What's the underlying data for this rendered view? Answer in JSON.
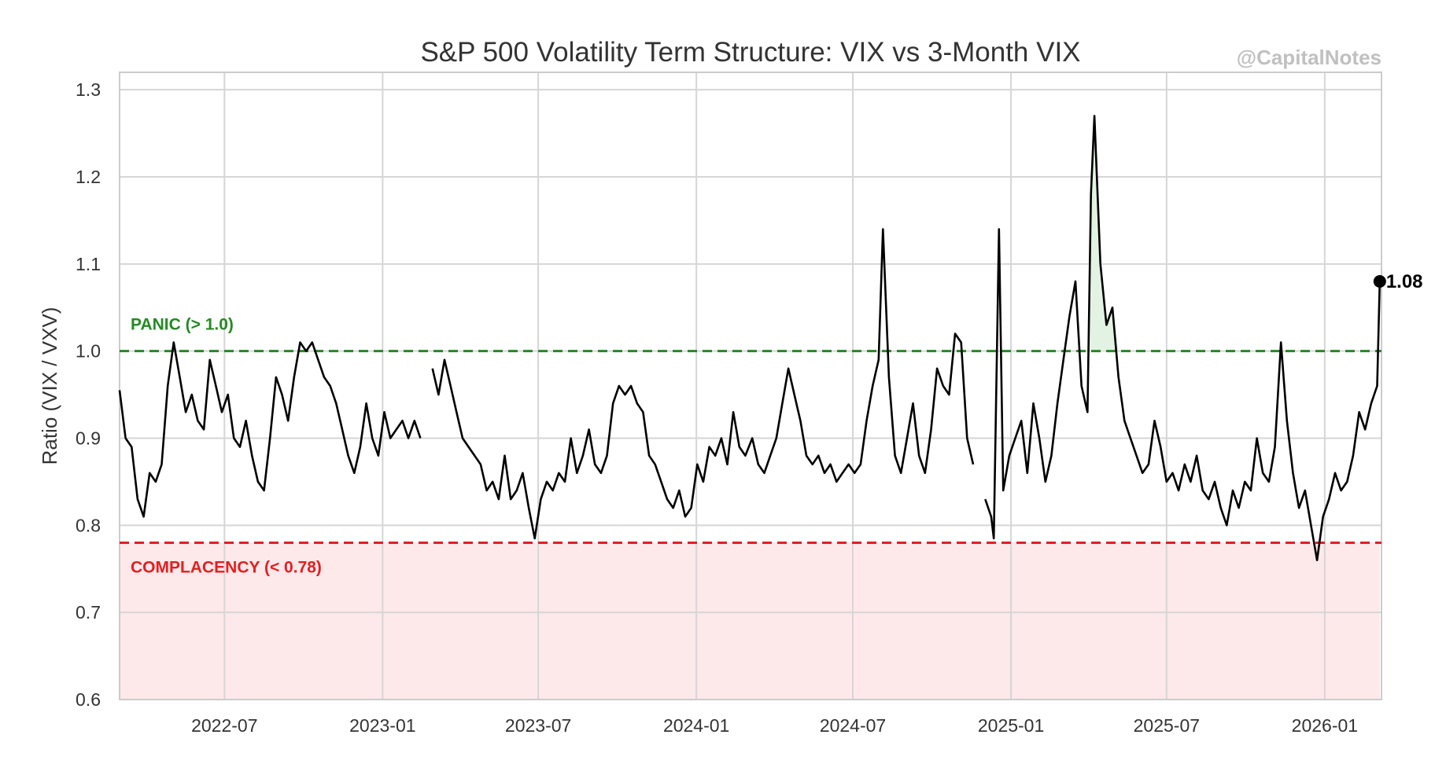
{
  "colors": {
    "series": "#000000",
    "panic": "#228b22",
    "complacency": "#e02020",
    "complacency_fill": "#fde8ea",
    "panic_fill": "#e3f3e3",
    "grid": "#d6d6d6",
    "axis": "#cccccc"
  },
  "watermark": "@CapitalNotes",
  "chart_data": {
    "type": "line",
    "title": "S&P 500 Volatility Term Structure: VIX vs 3-Month VIX",
    "xlabel": "",
    "ylabel": "Ratio (VIX / VXV)",
    "xlim": [
      "2022-03-01",
      "2026-03-08"
    ],
    "ylim": [
      0.6,
      1.32
    ],
    "yticks": [
      0.6,
      0.7,
      0.8,
      0.9,
      1.0,
      1.1,
      1.2,
      1.3
    ],
    "ytick_labels": [
      "0.6",
      "0.7",
      "0.8",
      "0.9",
      "1.0",
      "1.1",
      "1.2",
      "1.3"
    ],
    "xticks": [
      "2022-07-01",
      "2023-01-01",
      "2023-07-01",
      "2024-01-01",
      "2024-07-01",
      "2025-01-01",
      "2025-07-01",
      "2026-01-01"
    ],
    "xtick_labels": [
      "2022-07",
      "2023-01",
      "2023-07",
      "2024-01",
      "2024-07",
      "2025-01",
      "2025-07",
      "2026-01"
    ],
    "grid": true,
    "thresholds": {
      "panic": {
        "value": 1.0,
        "label": "PANIC (> 1.0)"
      },
      "complacency": {
        "value": 0.78,
        "label": "COMPLACENCY (< 0.78)"
      }
    },
    "last_point": {
      "date": "2026-03-06",
      "value": 1.08,
      "label": "1.08"
    },
    "series": [
      {
        "name": "VIX / VXV",
        "points": [
          [
            "2022-03-01",
            0.955
          ],
          [
            "2022-03-08",
            0.9
          ],
          [
            "2022-03-15",
            0.89
          ],
          [
            "2022-03-22",
            0.83
          ],
          [
            "2022-03-29",
            0.81
          ],
          [
            "2022-04-05",
            0.86
          ],
          [
            "2022-04-12",
            0.85
          ],
          [
            "2022-04-19",
            0.87
          ],
          [
            "2022-04-26",
            0.96
          ],
          [
            "2022-05-03",
            1.01
          ],
          [
            "2022-05-10",
            0.97
          ],
          [
            "2022-05-17",
            0.93
          ],
          [
            "2022-05-24",
            0.95
          ],
          [
            "2022-05-31",
            0.92
          ],
          [
            "2022-06-07",
            0.91
          ],
          [
            "2022-06-14",
            0.99
          ],
          [
            "2022-06-21",
            0.96
          ],
          [
            "2022-06-28",
            0.93
          ],
          [
            "2022-07-05",
            0.95
          ],
          [
            "2022-07-12",
            0.9
          ],
          [
            "2022-07-19",
            0.89
          ],
          [
            "2022-07-26",
            0.92
          ],
          [
            "2022-08-02",
            0.88
          ],
          [
            "2022-08-09",
            0.85
          ],
          [
            "2022-08-16",
            0.84
          ],
          [
            "2022-08-23",
            0.9
          ],
          [
            "2022-08-30",
            0.97
          ],
          [
            "2022-09-06",
            0.95
          ],
          [
            "2022-09-13",
            0.92
          ],
          [
            "2022-09-20",
            0.97
          ],
          [
            "2022-09-27",
            1.01
          ],
          [
            "2022-10-04",
            1.0
          ],
          [
            "2022-10-11",
            1.01
          ],
          [
            "2022-10-18",
            0.99
          ],
          [
            "2022-10-25",
            0.97
          ],
          [
            "2022-11-01",
            0.96
          ],
          [
            "2022-11-08",
            0.94
          ],
          [
            "2022-11-15",
            0.91
          ],
          [
            "2022-11-22",
            0.88
          ],
          [
            "2022-11-29",
            0.86
          ],
          [
            "2022-12-06",
            0.89
          ],
          [
            "2022-12-13",
            0.94
          ],
          [
            "2022-12-20",
            0.9
          ],
          [
            "2022-12-27",
            0.88
          ],
          [
            "2023-01-03",
            0.93
          ],
          [
            "2023-01-10",
            0.9
          ],
          [
            "2023-01-17",
            0.91
          ],
          [
            "2023-01-24",
            0.92
          ],
          [
            "2023-01-31",
            0.9
          ],
          [
            "2023-02-07",
            0.92
          ],
          [
            "2023-02-14",
            0.9
          ],
          [
            "2023-02-21",
            null
          ],
          [
            "2023-02-28",
            0.98
          ],
          [
            "2023-03-07",
            0.95
          ],
          [
            "2023-03-14",
            0.99
          ],
          [
            "2023-03-21",
            0.96
          ],
          [
            "2023-03-28",
            0.93
          ],
          [
            "2023-04-04",
            0.9
          ],
          [
            "2023-04-11",
            0.89
          ],
          [
            "2023-04-18",
            0.88
          ],
          [
            "2023-04-25",
            0.87
          ],
          [
            "2023-05-02",
            0.84
          ],
          [
            "2023-05-09",
            0.85
          ],
          [
            "2023-05-16",
            0.83
          ],
          [
            "2023-05-23",
            0.88
          ],
          [
            "2023-05-30",
            0.83
          ],
          [
            "2023-06-06",
            0.84
          ],
          [
            "2023-06-13",
            0.86
          ],
          [
            "2023-06-20",
            0.82
          ],
          [
            "2023-06-27",
            0.785
          ],
          [
            "2023-07-04",
            0.83
          ],
          [
            "2023-07-11",
            0.85
          ],
          [
            "2023-07-18",
            0.84
          ],
          [
            "2023-07-25",
            0.86
          ],
          [
            "2023-08-01",
            0.85
          ],
          [
            "2023-08-08",
            0.9
          ],
          [
            "2023-08-15",
            0.86
          ],
          [
            "2023-08-22",
            0.88
          ],
          [
            "2023-08-29",
            0.91
          ],
          [
            "2023-09-05",
            0.87
          ],
          [
            "2023-09-12",
            0.86
          ],
          [
            "2023-09-19",
            0.88
          ],
          [
            "2023-09-26",
            0.94
          ],
          [
            "2023-10-03",
            0.96
          ],
          [
            "2023-10-10",
            0.95
          ],
          [
            "2023-10-17",
            0.96
          ],
          [
            "2023-10-24",
            0.94
          ],
          [
            "2023-10-31",
            0.93
          ],
          [
            "2023-11-07",
            0.88
          ],
          [
            "2023-11-14",
            0.87
          ],
          [
            "2023-11-21",
            0.85
          ],
          [
            "2023-11-28",
            0.83
          ],
          [
            "2023-12-05",
            0.82
          ],
          [
            "2023-12-12",
            0.84
          ],
          [
            "2023-12-19",
            0.81
          ],
          [
            "2023-12-26",
            0.82
          ],
          [
            "2024-01-02",
            0.87
          ],
          [
            "2024-01-09",
            0.85
          ],
          [
            "2024-01-16",
            0.89
          ],
          [
            "2024-01-23",
            0.88
          ],
          [
            "2024-01-30",
            0.9
          ],
          [
            "2024-02-06",
            0.87
          ],
          [
            "2024-02-13",
            0.93
          ],
          [
            "2024-02-20",
            0.89
          ],
          [
            "2024-02-27",
            0.88
          ],
          [
            "2024-03-06",
            0.9
          ],
          [
            "2024-03-13",
            0.87
          ],
          [
            "2024-03-20",
            0.86
          ],
          [
            "2024-03-27",
            0.88
          ],
          [
            "2024-04-03",
            0.9
          ],
          [
            "2024-04-10",
            0.94
          ],
          [
            "2024-04-17",
            0.98
          ],
          [
            "2024-04-24",
            0.95
          ],
          [
            "2024-05-01",
            0.92
          ],
          [
            "2024-05-08",
            0.88
          ],
          [
            "2024-05-15",
            0.87
          ],
          [
            "2024-05-22",
            0.88
          ],
          [
            "2024-05-29",
            0.86
          ],
          [
            "2024-06-05",
            0.87
          ],
          [
            "2024-06-12",
            0.85
          ],
          [
            "2024-06-19",
            0.86
          ],
          [
            "2024-06-26",
            0.87
          ],
          [
            "2024-07-03",
            0.86
          ],
          [
            "2024-07-10",
            0.87
          ],
          [
            "2024-07-17",
            0.92
          ],
          [
            "2024-07-24",
            0.96
          ],
          [
            "2024-07-31",
            0.99
          ],
          [
            "2024-08-05",
            1.14
          ],
          [
            "2024-08-12",
            0.97
          ],
          [
            "2024-08-19",
            0.88
          ],
          [
            "2024-08-26",
            0.86
          ],
          [
            "2024-09-02",
            0.9
          ],
          [
            "2024-09-09",
            0.94
          ],
          [
            "2024-09-16",
            0.88
          ],
          [
            "2024-09-23",
            0.86
          ],
          [
            "2024-09-30",
            0.91
          ],
          [
            "2024-10-07",
            0.98
          ],
          [
            "2024-10-14",
            0.96
          ],
          [
            "2024-10-21",
            0.95
          ],
          [
            "2024-10-28",
            1.02
          ],
          [
            "2024-11-04",
            1.01
          ],
          [
            "2024-11-11",
            0.9
          ],
          [
            "2024-11-18",
            0.87
          ],
          [
            "2024-11-25",
            null
          ],
          [
            "2024-12-02",
            0.83
          ],
          [
            "2024-12-09",
            0.81
          ],
          [
            "2024-12-12",
            0.785
          ],
          [
            "2024-12-18",
            1.14
          ],
          [
            "2024-12-23",
            0.84
          ],
          [
            "2024-12-30",
            0.88
          ],
          [
            "2025-01-06",
            0.9
          ],
          [
            "2025-01-13",
            0.92
          ],
          [
            "2025-01-20",
            0.86
          ],
          [
            "2025-01-27",
            0.94
          ],
          [
            "2025-02-03",
            0.9
          ],
          [
            "2025-02-10",
            0.85
          ],
          [
            "2025-02-17",
            0.88
          ],
          [
            "2025-02-24",
            0.94
          ],
          [
            "2025-03-03",
            0.99
          ],
          [
            "2025-03-10",
            1.04
          ],
          [
            "2025-03-17",
            1.08
          ],
          [
            "2025-03-24",
            0.96
          ],
          [
            "2025-03-31",
            0.93
          ],
          [
            "2025-04-04",
            1.18
          ],
          [
            "2025-04-08",
            1.27
          ],
          [
            "2025-04-15",
            1.1
          ],
          [
            "2025-04-22",
            1.03
          ],
          [
            "2025-04-29",
            1.05
          ],
          [
            "2025-05-06",
            0.97
          ],
          [
            "2025-05-13",
            0.92
          ],
          [
            "2025-05-20",
            0.9
          ],
          [
            "2025-05-27",
            0.88
          ],
          [
            "2025-06-03",
            0.86
          ],
          [
            "2025-06-10",
            0.87
          ],
          [
            "2025-06-17",
            0.92
          ],
          [
            "2025-06-24",
            0.89
          ],
          [
            "2025-07-01",
            0.85
          ],
          [
            "2025-07-08",
            0.86
          ],
          [
            "2025-07-15",
            0.84
          ],
          [
            "2025-07-22",
            0.87
          ],
          [
            "2025-07-29",
            0.85
          ],
          [
            "2025-08-05",
            0.88
          ],
          [
            "2025-08-12",
            0.84
          ],
          [
            "2025-08-19",
            0.83
          ],
          [
            "2025-08-26",
            0.85
          ],
          [
            "2025-09-02",
            0.82
          ],
          [
            "2025-09-09",
            0.8
          ],
          [
            "2025-09-16",
            0.84
          ],
          [
            "2025-09-23",
            0.82
          ],
          [
            "2025-09-30",
            0.85
          ],
          [
            "2025-10-07",
            0.84
          ],
          [
            "2025-10-14",
            0.9
          ],
          [
            "2025-10-21",
            0.86
          ],
          [
            "2025-10-28",
            0.85
          ],
          [
            "2025-11-04",
            0.89
          ],
          [
            "2025-11-11",
            1.01
          ],
          [
            "2025-11-18",
            0.92
          ],
          [
            "2025-11-25",
            0.86
          ],
          [
            "2025-12-02",
            0.82
          ],
          [
            "2025-12-09",
            0.84
          ],
          [
            "2025-12-16",
            0.8
          ],
          [
            "2025-12-23",
            0.76
          ],
          [
            "2025-12-30",
            0.81
          ],
          [
            "2026-01-06",
            0.83
          ],
          [
            "2026-01-13",
            0.86
          ],
          [
            "2026-01-20",
            0.84
          ],
          [
            "2026-01-27",
            0.85
          ],
          [
            "2026-02-03",
            0.88
          ],
          [
            "2026-02-10",
            0.93
          ],
          [
            "2026-02-17",
            0.91
          ],
          [
            "2026-02-24",
            0.94
          ],
          [
            "2026-03-03",
            0.96
          ],
          [
            "2026-03-06",
            1.08
          ]
        ]
      }
    ]
  }
}
